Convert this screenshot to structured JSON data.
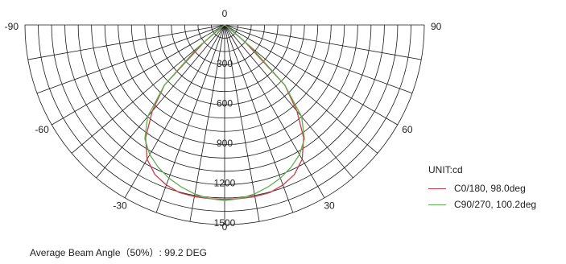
{
  "chart_data": {
    "type": "polar",
    "unit_label": "UNIT:cd",
    "angle_labels": [
      "-90",
      "90",
      "-60",
      "60",
      "-30",
      "30",
      "0",
      "0"
    ],
    "radial_ticks": [
      "300",
      "600",
      "900",
      "1200",
      "1500"
    ],
    "radial_max": 1500,
    "angle_range": [
      -90,
      90
    ],
    "spoke_step_deg": 10,
    "grid": true,
    "legend_position": "right",
    "series": [
      {
        "name": "C0/180, 98.0deg",
        "color": "#c83c46",
        "angles": [
          -90,
          -80,
          -70,
          -60,
          -55,
          -50,
          -45,
          -40,
          -35,
          -30,
          -25,
          -20,
          -15,
          -10,
          -5,
          0,
          5,
          10,
          15,
          20,
          25,
          30,
          35,
          40,
          45,
          50,
          55,
          60,
          65,
          70,
          80,
          90
        ],
        "values": [
          0,
          0,
          0,
          0,
          45,
          205,
          640,
          845,
          1035,
          1165,
          1240,
          1280,
          1305,
          1310,
          1310,
          1310,
          1310,
          1310,
          1305,
          1280,
          1240,
          1165,
          1035,
          845,
          640,
          205,
          45,
          0,
          0,
          0,
          0,
          0
        ]
      },
      {
        "name": "C90/270, 100.2deg",
        "color": "#5fae4f",
        "angles": [
          -90,
          -80,
          -70,
          -60,
          -55,
          -50,
          -45,
          -40,
          -35,
          -30,
          -25,
          -20,
          -15,
          -10,
          -5,
          0,
          5,
          10,
          15,
          20,
          25,
          30,
          35,
          40,
          45,
          50,
          55,
          60,
          65,
          70,
          80,
          90
        ],
        "values": [
          0,
          0,
          0,
          0,
          45,
          260,
          640,
          900,
          1045,
          1125,
          1180,
          1225,
          1260,
          1290,
          1310,
          1320,
          1310,
          1290,
          1260,
          1225,
          1180,
          1125,
          1045,
          900,
          640,
          260,
          45,
          0,
          0,
          0,
          0,
          0
        ]
      }
    ]
  },
  "footer_text": "Average Beam Angle（50%）: 99.2 DEG"
}
